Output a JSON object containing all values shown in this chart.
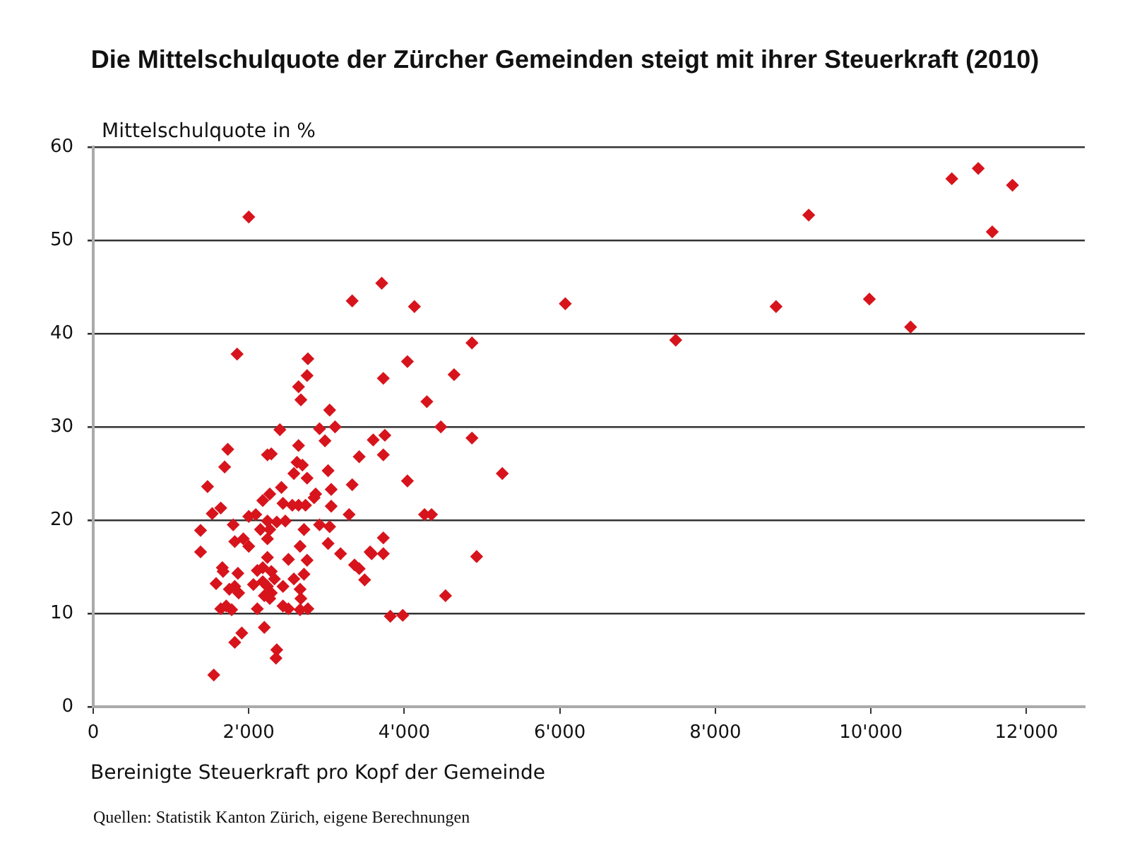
{
  "chart_data": {
    "type": "scatter",
    "title": "Die Mittelschulquote der Zürcher Gemeinden steigt mit ihrer Steuerkraft (2010)",
    "xlabel": "Bereinigte Steuerkraft pro Kopf der Gemeinde",
    "ylabel": "Mittelschulquote in %",
    "annotations": [
      "Quellen: Statistik Kanton Zürich, eigene Berechnungen"
    ],
    "x": [
      11820,
      11380,
      11040,
      11560,
      9200,
      9980,
      8780,
      10510,
      7490,
      6070,
      2000,
      3330,
      3710,
      4130,
      4870,
      4040,
      4640,
      3730,
      4290,
      4470,
      4870,
      3750,
      3600,
      3420,
      3730,
      5260,
      4040,
      3330,
      4260,
      4350,
      3730,
      3580,
      3730,
      4930,
      3360,
      3420,
      3490,
      4530,
      3820,
      3980,
      1850,
      2760,
      2750,
      2640,
      2670,
      3040,
      2400,
      2910,
      3110,
      2980,
      2640,
      1730,
      1690,
      2240,
      2290,
      2620,
      2690,
      2580,
      2750,
      3020,
      1470,
      2270,
      2420,
      2860,
      3060,
      1530,
      1640,
      1380,
      1380,
      1800,
      1820,
      1930,
      2000,
      2000,
      2090,
      2180,
      2440,
      2560,
      2640,
      2730,
      2840,
      3060,
      3290,
      2710,
      2910,
      3040,
      2660,
      3020,
      3180,
      2150,
      2240,
      2270,
      2240,
      2360,
      2470,
      2750,
      2240,
      2180,
      2110,
      2290,
      2330,
      2180,
      2240,
      2290,
      2270,
      2200,
      2510,
      2710,
      2580,
      2440,
      2660,
      2670,
      1860,
      1660,
      1670,
      1580,
      1750,
      1820,
      1870,
      2060,
      1640,
      1710,
      1780,
      2110,
      2440,
      2510,
      2660,
      2760,
      1910,
      1820,
      2200,
      2360,
      2350,
      1550,
      3560
    ],
    "values": [
      55.9,
      57.7,
      56.6,
      50.9,
      52.7,
      43.7,
      42.9,
      40.7,
      39.3,
      43.2,
      52.5,
      43.5,
      45.4,
      42.9,
      39.0,
      37.0,
      35.6,
      35.2,
      32.7,
      30.0,
      28.8,
      29.1,
      28.6,
      26.8,
      27.0,
      25.0,
      24.2,
      23.8,
      20.6,
      20.6,
      18.1,
      16.4,
      16.4,
      16.1,
      15.2,
      14.8,
      13.6,
      11.9,
      9.7,
      9.8,
      37.8,
      37.3,
      35.5,
      34.3,
      32.9,
      31.8,
      29.7,
      29.8,
      30.0,
      28.5,
      28.0,
      27.6,
      25.7,
      27.0,
      27.1,
      26.2,
      25.9,
      25.0,
      24.5,
      25.3,
      23.6,
      22.8,
      23.5,
      22.8,
      23.3,
      20.7,
      21.3,
      18.9,
      16.6,
      19.5,
      17.7,
      18.0,
      17.2,
      20.4,
      20.6,
      22.1,
      21.8,
      21.6,
      21.6,
      21.6,
      22.4,
      21.5,
      20.6,
      19.0,
      19.5,
      19.3,
      17.2,
      17.5,
      16.4,
      19.0,
      19.9,
      19.0,
      18.0,
      19.8,
      19.9,
      15.7,
      16.0,
      14.9,
      14.6,
      14.5,
      13.7,
      13.4,
      12.9,
      12.2,
      11.6,
      11.9,
      15.8,
      14.2,
      13.7,
      12.9,
      12.6,
      11.6,
      14.3,
      14.9,
      14.5,
      13.2,
      12.6,
      12.9,
      12.2,
      13.1,
      10.5,
      10.8,
      10.4,
      10.5,
      10.8,
      10.5,
      10.4,
      10.5,
      7.9,
      6.9,
      8.5,
      6.1,
      5.2,
      3.4,
      16.6
    ],
    "color": "#d7141c",
    "marker": "diamond",
    "legend": false,
    "grid": "y",
    "xlim": [
      0,
      12750
    ],
    "xticks": [
      0,
      {
        "value": 2000,
        "label": "2'000"
      },
      {
        "value": 4000,
        "label": "4'000"
      },
      {
        "value": 6000,
        "label": "6'000"
      },
      {
        "value": 8000,
        "label": "8'000"
      },
      {
        "value": 10000,
        "label": "10'000"
      },
      {
        "value": 12000,
        "label": "12'000"
      }
    ],
    "ylim": [
      0,
      60
    ],
    "yticks": [
      0,
      10,
      20,
      30,
      40,
      50,
      60
    ]
  }
}
